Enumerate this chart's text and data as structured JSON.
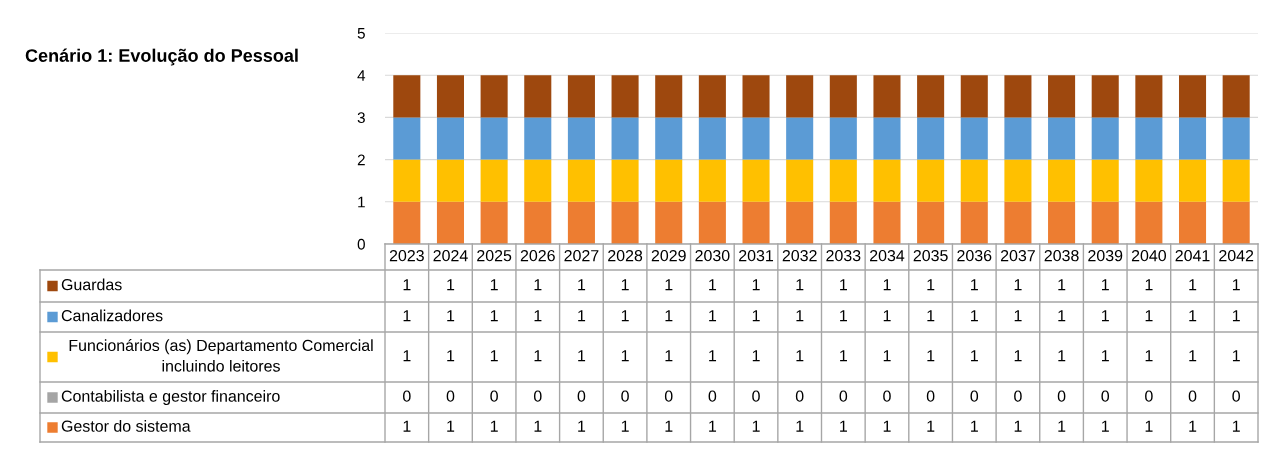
{
  "chart_data": {
    "type": "bar",
    "title": "Cenário 1: Evolução do Pessoal",
    "stacked": true,
    "grid": "y",
    "legend": "bottom",
    "tick_labels": "y",
    "categories": [
      "2023",
      "2024",
      "2025",
      "2026",
      "2027",
      "2028",
      "2029",
      "2030",
      "2031",
      "2032",
      "2033",
      "2034",
      "2035",
      "2036",
      "2037",
      "2038",
      "2039",
      "2040",
      "2041",
      "2042"
    ],
    "ylim": [
      0,
      5
    ],
    "yticks": [
      0,
      1,
      2,
      3,
      4,
      5
    ],
    "series": [
      {
        "name": "Gestor do sistema",
        "color": "#ed7d31",
        "values": [
          1,
          1,
          1,
          1,
          1,
          1,
          1,
          1,
          1,
          1,
          1,
          1,
          1,
          1,
          1,
          1,
          1,
          1,
          1,
          1
        ],
        "value_labels": [
          "1",
          "1",
          "1",
          "1",
          "1",
          "1",
          "1",
          "1",
          "1",
          "1",
          "1",
          "1",
          "1",
          "1",
          "1",
          "1",
          "1",
          "1",
          "1",
          "1"
        ]
      },
      {
        "name": "Contabilista e gestor financeiro",
        "color": "#a5a5a5",
        "values": [
          0,
          0,
          0,
          0,
          0,
          0,
          0,
          0,
          0,
          0,
          0,
          0,
          0,
          0,
          0,
          0,
          0,
          0,
          0,
          0
        ],
        "value_labels": [
          "0",
          "0",
          "0",
          "0",
          "0",
          "0",
          "0",
          "0",
          "0",
          "0",
          "0",
          "0",
          "0",
          "0",
          "0",
          "0",
          "0",
          "0",
          "0",
          "0"
        ]
      },
      {
        "name": "Funcionários (as) Departamento Comercial incluindo leitores",
        "color": "#ffc000",
        "values": [
          1,
          1,
          1,
          1,
          1,
          1,
          1,
          1,
          1,
          1,
          1,
          1,
          1,
          1,
          1,
          1,
          1,
          1,
          1,
          1
        ],
        "value_labels": [
          "1",
          "1",
          "1",
          "1",
          "1",
          "1",
          "1",
          "1",
          "1",
          "1",
          "1",
          "1",
          "1",
          "1",
          "1",
          "1",
          "1",
          "1",
          "1",
          "1"
        ]
      },
      {
        "name": "Canalizadores",
        "color": "#5b9bd5",
        "values": [
          1,
          1,
          1,
          1,
          1,
          1,
          1,
          1,
          1,
          1,
          1,
          1,
          1,
          1,
          1,
          1,
          1,
          1,
          1,
          1
        ],
        "value_labels": [
          "1",
          "1",
          "1",
          "1",
          "1",
          "1",
          "1",
          "1",
          "1",
          "1",
          "1",
          "1",
          "1",
          "1",
          "1",
          "1",
          "1",
          "1",
          "1",
          "1"
        ]
      },
      {
        "name": "Guardas",
        "color": "#9e480e",
        "values": [
          1,
          1,
          1,
          1,
          1,
          1,
          1,
          1,
          1,
          1,
          1,
          1,
          1,
          1,
          1,
          1,
          1,
          1,
          1,
          1
        ],
        "value_labels": [
          "1",
          "1",
          "1",
          "1",
          "1",
          "1",
          "1",
          "1",
          "1",
          "1",
          "1",
          "1",
          "1",
          "1",
          "1",
          "1",
          "1",
          "1",
          "1",
          "1"
        ]
      }
    ]
  }
}
